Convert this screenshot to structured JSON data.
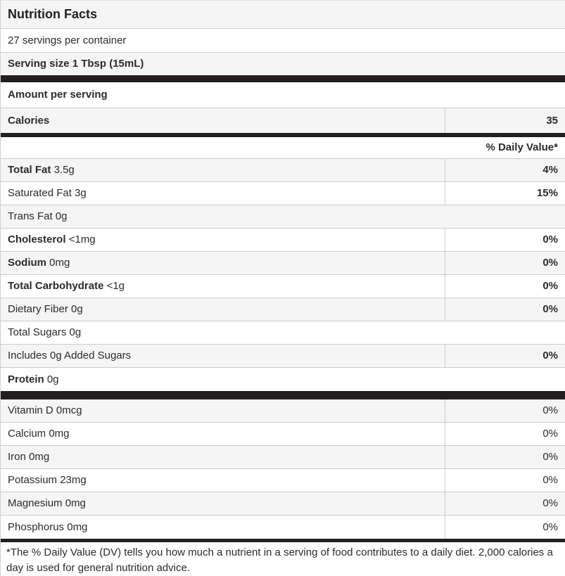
{
  "label": {
    "title": "Nutrition Facts",
    "servings_per_container": "27 servings per container",
    "serving_size": "Serving size 1 Tbsp (15mL)",
    "amount_per_serving": "Amount per serving",
    "calories_label": "Calories",
    "calories_value": "35",
    "daily_value_header": "% Daily Value*",
    "footnote": "*The % Daily Value (DV) tells you how much a nutrient in a serving of food contributes to a daily diet. 2,000 calories a day is used for general nutrition advice."
  },
  "nutrients": [
    {
      "bold_part": "Total Fat",
      "rest": "3.5g",
      "dv": "4%",
      "dv_bold": true,
      "shade": true
    },
    {
      "bold_part": "",
      "rest": "Saturated Fat 3g",
      "dv": "15%",
      "dv_bold": true,
      "shade": false
    },
    {
      "bold_part": "",
      "rest": "Trans Fat 0g",
      "dv": "",
      "dv_bold": false,
      "shade": true
    },
    {
      "bold_part": "Cholesterol",
      "rest": "<1mg",
      "dv": "0%",
      "dv_bold": true,
      "shade": false
    },
    {
      "bold_part": "Sodium",
      "rest": "0mg",
      "dv": "0%",
      "dv_bold": true,
      "shade": true
    },
    {
      "bold_part": "Total Carbohydrate",
      "rest": "<1g",
      "dv": "0%",
      "dv_bold": true,
      "shade": false
    },
    {
      "bold_part": "",
      "rest": "Dietary Fiber 0g",
      "dv": "0%",
      "dv_bold": true,
      "shade": true
    },
    {
      "bold_part": "",
      "rest": "Total Sugars 0g",
      "dv": "",
      "dv_bold": false,
      "shade": false
    },
    {
      "bold_part": "",
      "rest": "Includes 0g Added Sugars",
      "dv": "0%",
      "dv_bold": true,
      "shade": true
    },
    {
      "bold_part": "Protein",
      "rest": "0g",
      "dv": "",
      "dv_bold": false,
      "shade": false
    }
  ],
  "micronutrients": [
    {
      "bold_part": "",
      "rest": "Vitamin D 0mcg",
      "dv": "0%",
      "dv_bold": false,
      "shade": true
    },
    {
      "bold_part": "",
      "rest": "Calcium 0mg",
      "dv": "0%",
      "dv_bold": false,
      "shade": false
    },
    {
      "bold_part": "",
      "rest": "Iron 0mg",
      "dv": "0%",
      "dv_bold": false,
      "shade": true
    },
    {
      "bold_part": "",
      "rest": "Potassium 23mg",
      "dv": "0%",
      "dv_bold": false,
      "shade": false
    },
    {
      "bold_part": "",
      "rest": "Magnesium 0mg",
      "dv": "0%",
      "dv_bold": false,
      "shade": true
    },
    {
      "bold_part": "",
      "rest": "Phosphorus 0mg",
      "dv": "0%",
      "dv_bold": false,
      "shade": false
    }
  ],
  "colors": {
    "stripe": "#f5f5f5",
    "divider_bar": "#231f20",
    "row_border": "#cccccc",
    "text": "#2b2b2b"
  }
}
